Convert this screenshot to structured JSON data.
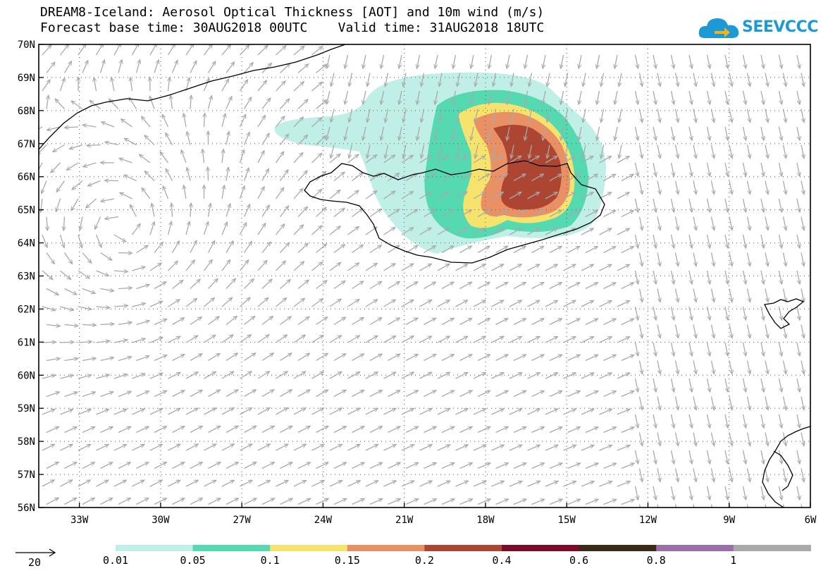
{
  "title": {
    "line1": "DREAM8-Iceland: Aerosol Optical Thickness [AOT] and 10m wind (m/s)",
    "line2": "Forecast base time: 30AUG2018 00UTC    Valid time: 31AUG2018 18UTC"
  },
  "logo": {
    "text": "SEEVCCC",
    "icon": "cloud-arrow-icon",
    "color": "#1d9ad6"
  },
  "map": {
    "lat_labels": [
      "70N",
      "69N",
      "68N",
      "67N",
      "66N",
      "65N",
      "64N",
      "63N",
      "62N",
      "61N",
      "60N",
      "59N",
      "58N",
      "57N",
      "56N"
    ],
    "lon_labels": [
      "33W",
      "30W",
      "27W",
      "24W",
      "21W",
      "18W",
      "15W",
      "12W",
      "9W",
      "6W"
    ],
    "lat_range": [
      56,
      70
    ],
    "lon_range": [
      -34.5,
      -6
    ],
    "gridlines": true,
    "arrow_color": "#a9a9a9"
  },
  "legend": {
    "wind_ref": "20",
    "levels": [
      "0.01",
      "0.05",
      "0.1",
      "0.15",
      "0.2",
      "0.4",
      "0.6",
      "0.8",
      "1"
    ],
    "colors": [
      "#c0efe8",
      "#54d9b0",
      "#f6e36e",
      "#ea9065",
      "#ad4533",
      "#7d0b28",
      "#3b2a17",
      "#9c6ea8",
      "#a9a9a9"
    ]
  }
}
